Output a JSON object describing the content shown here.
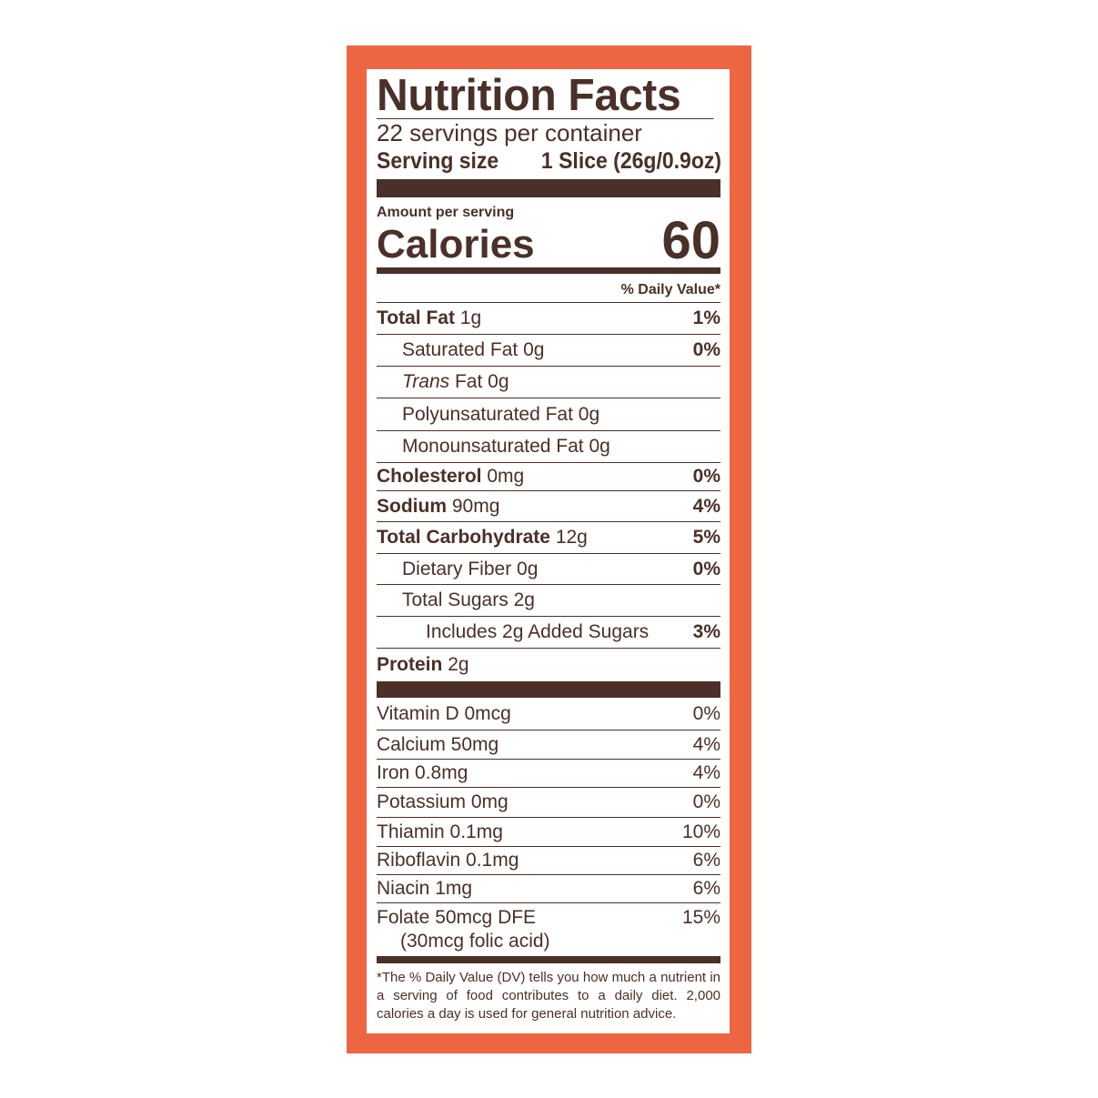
{
  "colors": {
    "border": "#ee6541",
    "text": "#4a3028"
  },
  "title": "Nutrition Facts",
  "servings_per_container": "22 servings per container",
  "serving_size": {
    "label": "Serving size",
    "value": "1 Slice (26g/0.9oz)"
  },
  "amount_per_serving": "Amount per serving",
  "calories": {
    "label": "Calories",
    "value": "60"
  },
  "daily_value_header": "% Daily Value*",
  "nutrients": [
    {
      "name": "Total Fat",
      "amount": "1g",
      "dv": "1%"
    },
    {
      "name": "Saturated Fat",
      "amount": "0g",
      "dv": "0%"
    },
    {
      "name": "Trans",
      "name_suffix": "Fat",
      "amount": "0g",
      "dv": ""
    },
    {
      "name": "Polyunsaturated Fat",
      "amount": "0g",
      "dv": ""
    },
    {
      "name": "Monounsaturated Fat",
      "amount": "0g",
      "dv": ""
    },
    {
      "name": "Cholesterol",
      "amount": "0mg",
      "dv": "0%"
    },
    {
      "name": "Sodium",
      "amount": "90mg",
      "dv": "4%"
    },
    {
      "name": "Total Carbohydrate",
      "amount": "12g",
      "dv": "5%"
    },
    {
      "name": "Dietary Fiber",
      "amount": "0g",
      "dv": "0%"
    },
    {
      "name": "Total Sugars",
      "amount": "2g",
      "dv": ""
    },
    {
      "name": "Includes 2g Added Sugars",
      "amount": "",
      "dv": "3%"
    },
    {
      "name": "Protein",
      "amount": "2g",
      "dv": ""
    }
  ],
  "vitamins": [
    {
      "label": "Vitamin D 0mcg",
      "dv": "0%"
    },
    {
      "label": "Calcium 50mg",
      "dv": "4%"
    },
    {
      "label": "Iron 0.8mg",
      "dv": "4%"
    },
    {
      "label": "Potassium 0mg",
      "dv": "0%"
    },
    {
      "label": "Thiamin 0.1mg",
      "dv": "10%"
    },
    {
      "label": "Riboflavin 0.1mg",
      "dv": "6%"
    },
    {
      "label": "Niacin 1mg",
      "dv": "6%"
    },
    {
      "label": "Folate 50mcg DFE",
      "sub": "(30mcg folic acid)",
      "dv": "15%"
    }
  ],
  "footnote": "*The % Daily Value (DV) tells you how much a nutrient in a serving of food contributes to a daily diet. 2,000 calories a day is used for general nutrition advice."
}
